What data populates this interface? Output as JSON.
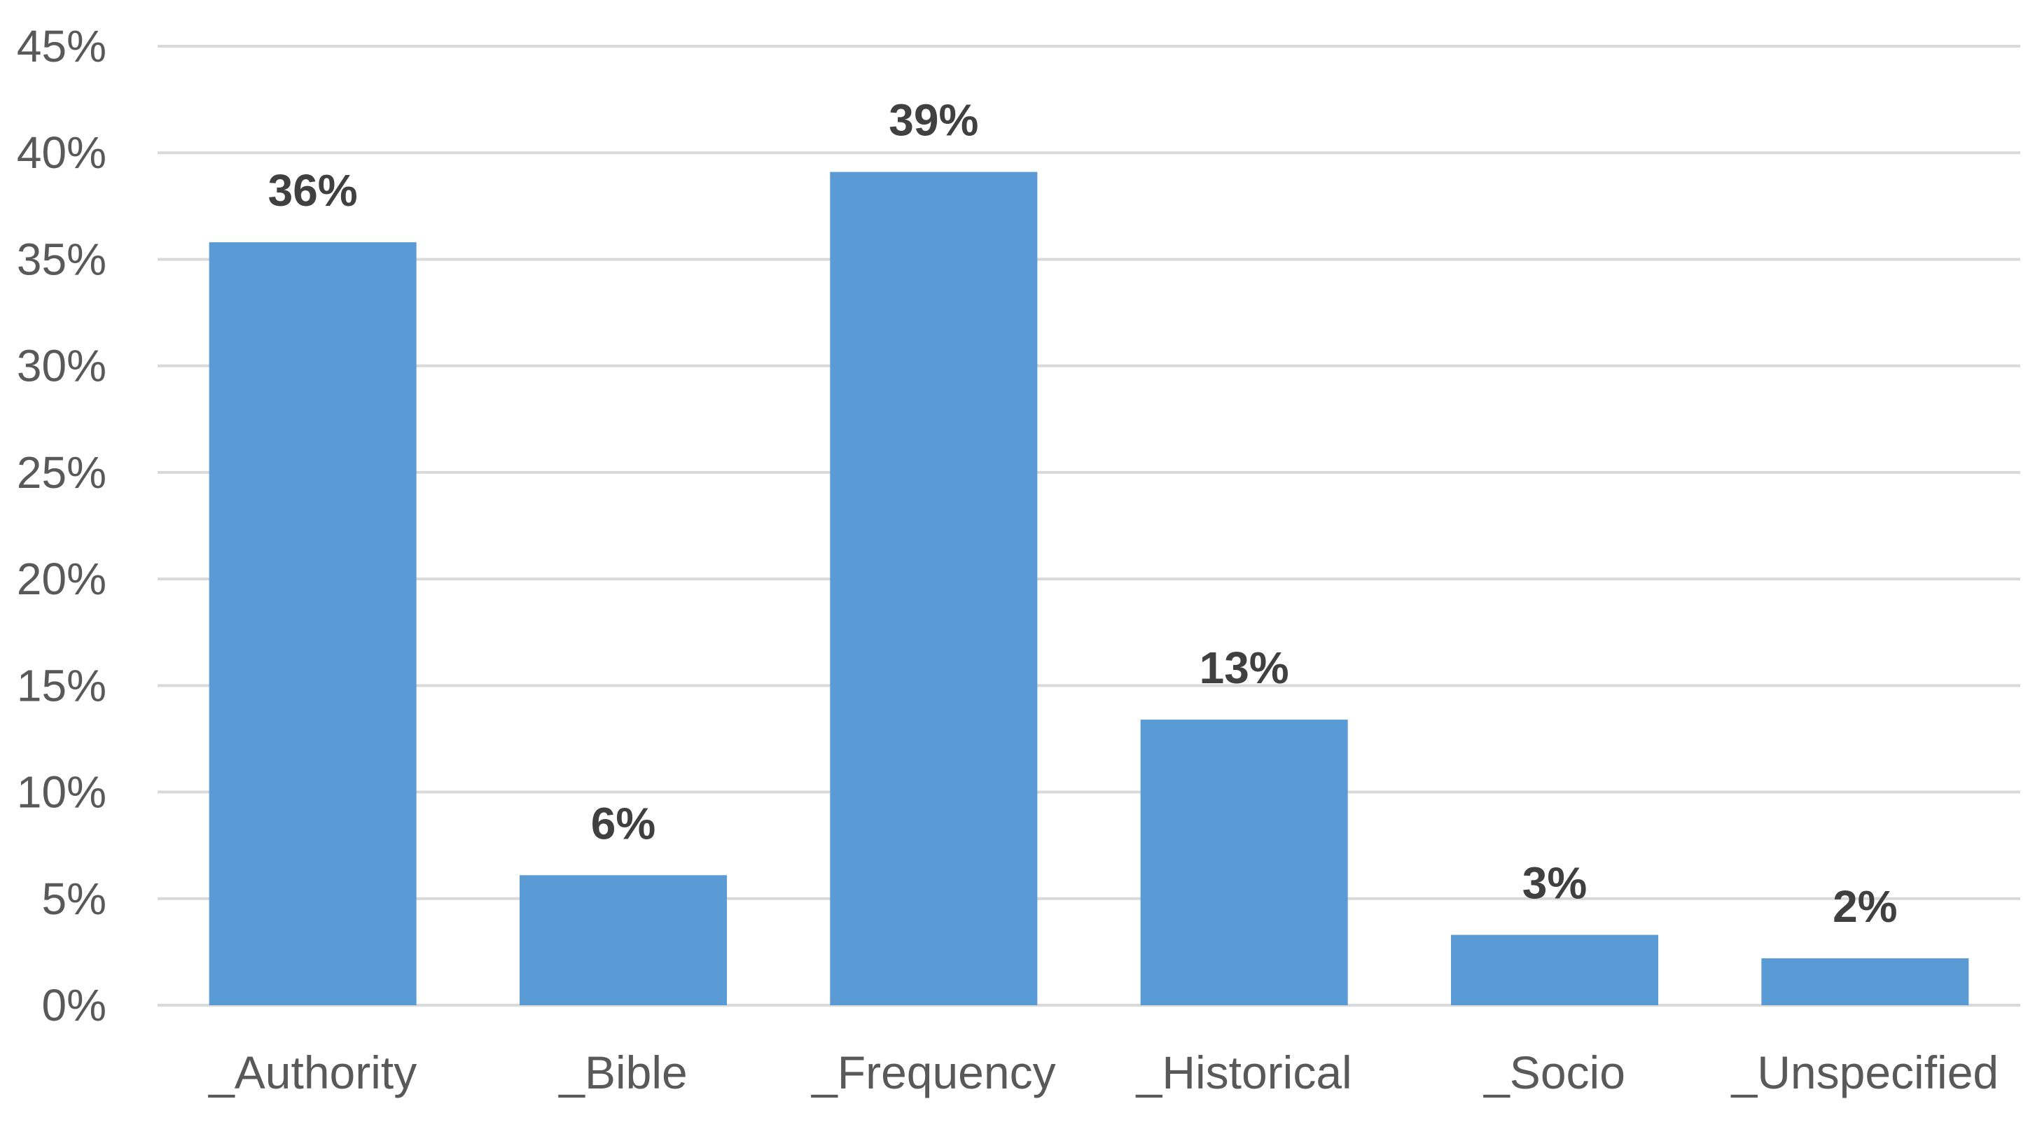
{
  "chart_data": {
    "type": "bar",
    "title": "",
    "xlabel": "",
    "ylabel": "",
    "categories": [
      "_Authority",
      "_Bible",
      "_Frequency",
      "_Historical",
      "_Socio",
      "_Unspecified"
    ],
    "values": [
      35.8,
      6.1,
      39.1,
      13.4,
      3.3,
      2.2
    ],
    "data_labels": [
      "36%",
      "6%",
      "39%",
      "13%",
      "3%",
      "2%"
    ],
    "ylim": [
      0,
      45
    ],
    "y_ticks": [
      0,
      5,
      10,
      15,
      20,
      25,
      30,
      35,
      40,
      45
    ],
    "y_tick_labels": [
      "0%",
      "5%",
      "10%",
      "15%",
      "20%",
      "25%",
      "30%",
      "35%",
      "40%",
      "45%"
    ],
    "grid": true,
    "legend": "none",
    "bar_color": "#5b9bd5"
  }
}
